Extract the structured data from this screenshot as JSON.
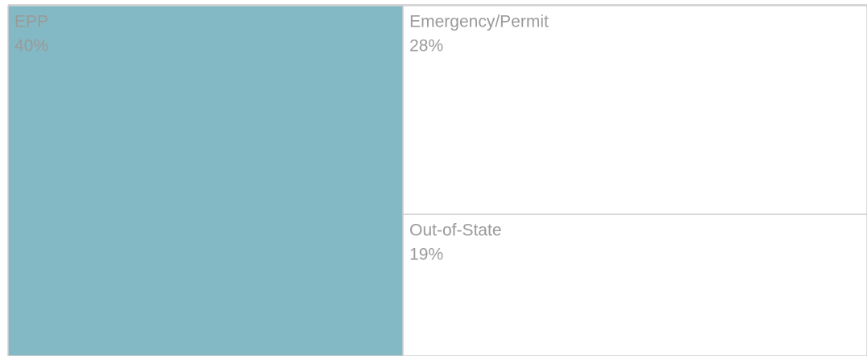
{
  "chart_data": {
    "type": "treemap",
    "categories": [
      "EPP",
      "Emergency/Permit",
      "Out-of-State"
    ],
    "values": [
      40,
      28,
      19
    ],
    "value_labels": [
      "40%",
      "28%",
      "19%"
    ],
    "colors": [
      "#83b9c4",
      "#ffffff",
      "#ffffff"
    ]
  }
}
